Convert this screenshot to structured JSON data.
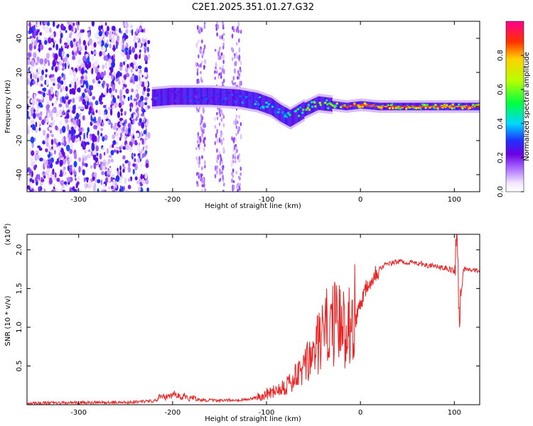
{
  "chart_data": [
    {
      "type": "heatmap",
      "title": "C2E1.2025.351.01.27.G32",
      "xlabel": "Height of straight line (km)",
      "ylabel": "Frequency (Hz)",
      "xlim": [
        -355,
        127
      ],
      "ylim": [
        -50,
        50
      ],
      "x_ticks": [
        -300,
        -200,
        -100,
        0,
        100
      ],
      "y_ticks": [
        -40,
        -20,
        0,
        20,
        40
      ],
      "colorbar": {
        "label": "Normalized spectral amplitude",
        "range": [
          0,
          1
        ],
        "ticks": [
          "0.0",
          "0.2",
          "0.4",
          "0.6",
          "0.8"
        ]
      },
      "signal_track": {
        "description": "Doppler frequency of signal vs height",
        "x": [
          -222,
          -200,
          -160,
          -130,
          -110,
          -95,
          -85,
          -75,
          -60,
          -45,
          -30,
          -15,
          0,
          20,
          60,
          100,
          127
        ],
        "freq": [
          5,
          6,
          6,
          5,
          3,
          0,
          -4,
          -7,
          -2,
          2,
          1,
          0,
          1,
          0,
          0,
          0,
          0
        ],
        "amplitude": [
          0.3,
          0.3,
          0.3,
          0.35,
          0.4,
          0.45,
          0.45,
          0.5,
          0.55,
          0.6,
          0.7,
          0.8,
          0.85,
          0.75,
          0.7,
          0.75,
          0.9
        ]
      }
    },
    {
      "type": "line",
      "xlabel": "Height of straight line (km)",
      "ylabel": "SNR (10 * v/v)",
      "y_multiplier_label": "(x10",
      "y_multiplier_exponent": "4",
      "xlim": [
        -355,
        127
      ],
      "ylim": [
        0,
        22000
      ],
      "x_ticks": [
        -300,
        -200,
        -100,
        0,
        100
      ],
      "y_ticks": [
        5000,
        10000,
        15000,
        20000
      ],
      "y_tick_labels": [
        "0.5",
        "1.0",
        "1.5",
        "2.0"
      ],
      "color": "#ee2222",
      "series": [
        {
          "name": "SNR",
          "x": [
            -355,
            -250,
            -220,
            -205,
            -195,
            -180,
            -150,
            -120,
            -105,
            -95,
            -85,
            -75,
            -65,
            -55,
            -45,
            -38,
            -30,
            -22,
            -15,
            -5,
            5,
            15,
            25,
            40,
            60,
            80,
            95,
            100,
            103,
            105,
            110,
            127
          ],
          "y": [
            200,
            300,
            500,
            1000,
            1100,
            700,
            500,
            700,
            1000,
            1500,
            2000,
            2500,
            3500,
            5000,
            7000,
            8500,
            9500,
            9000,
            9000,
            11000,
            15000,
            17000,
            18000,
            18500,
            18300,
            17800,
            17500,
            17200,
            21000,
            12000,
            17500,
            17300
          ]
        }
      ]
    }
  ]
}
